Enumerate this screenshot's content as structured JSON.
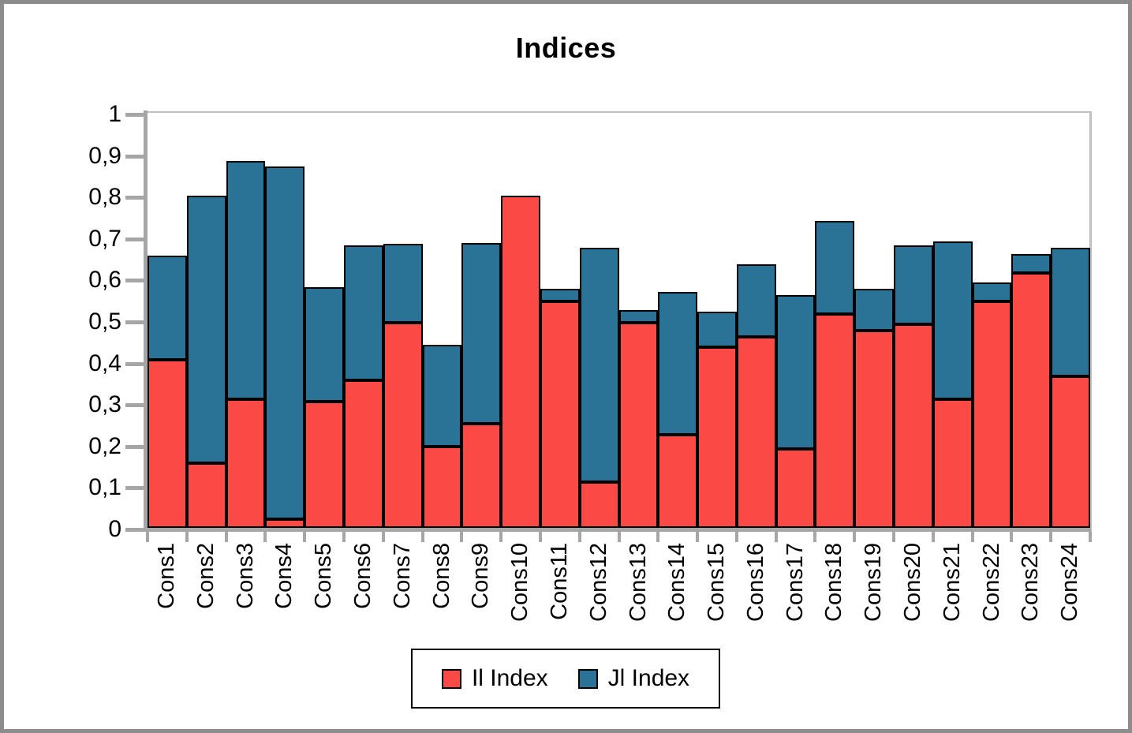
{
  "window": {
    "background": "#ffffff",
    "frame_color": "#8c8c8c"
  },
  "chart_data": {
    "type": "bar",
    "stacked": true,
    "title": "Indices",
    "xlabel": "",
    "ylabel": "",
    "categories": [
      "Cons1",
      "Cons2",
      "Cons3",
      "Cons4",
      "Cons5",
      "Cons6",
      "Cons7",
      "Cons8",
      "Cons9",
      "Cons10",
      "Cons11",
      "Cons12",
      "Cons13",
      "Cons14",
      "Cons15",
      "Cons16",
      "Cons17",
      "Cons18",
      "Cons19",
      "Cons20",
      "Cons21",
      "Cons22",
      "Cons23",
      "Cons24"
    ],
    "series": [
      {
        "name": "Il Index",
        "color": "#fb4a46",
        "values": [
          0.405,
          0.155,
          0.31,
          0.02,
          0.305,
          0.355,
          0.495,
          0.195,
          0.25,
          0.8,
          0.545,
          0.11,
          0.495,
          0.225,
          0.435,
          0.46,
          0.19,
          0.515,
          0.475,
          0.49,
          0.31,
          0.545,
          0.615,
          0.365
        ]
      },
      {
        "name": "Jl Index",
        "color": "#2b7396",
        "values": [
          0.25,
          0.645,
          0.575,
          0.85,
          0.275,
          0.325,
          0.19,
          0.245,
          0.435,
          0.0,
          0.03,
          0.565,
          0.03,
          0.345,
          0.085,
          0.175,
          0.37,
          0.225,
          0.1,
          0.19,
          0.38,
          0.045,
          0.045,
          0.31
        ]
      }
    ],
    "y_axis": {
      "min": 0,
      "max": 1,
      "step": 0.1,
      "tick_labels": [
        "0",
        "0,1",
        "0,2",
        "0,3",
        "0,4",
        "0,5",
        "0,6",
        "0,7",
        "0,8",
        "0,9",
        "1"
      ],
      "decimal_separator": ","
    },
    "axis_color": "#a6a6a6",
    "plot_border_color": "#c0c0c0",
    "bar_border_color": "#000000",
    "grid": "plot-top-and-right-border-only",
    "legend_position": "bottom"
  }
}
